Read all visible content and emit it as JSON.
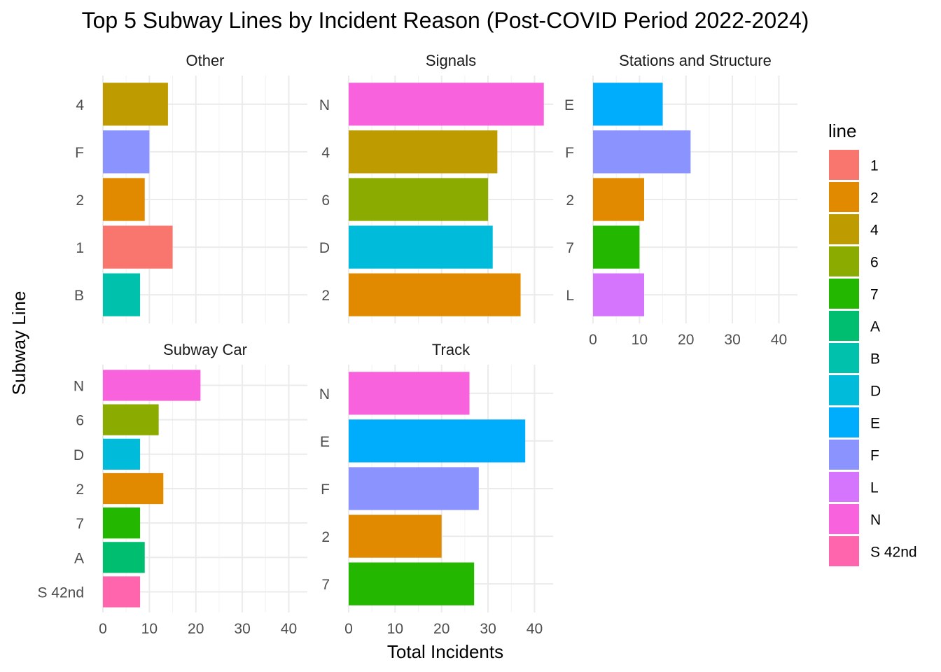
{
  "chart_data": {
    "type": "bar",
    "orientation": "horizontal",
    "title": "Top 5 Subway Lines by Incident Reason (Post-COVID Period 2022-2024)",
    "xlabel": "Total Incidents",
    "ylabel": "Subway Line",
    "xlim": [
      0,
      44
    ],
    "x_ticks": [
      0,
      10,
      20,
      30,
      40
    ],
    "grid": true,
    "legend": {
      "title": "line",
      "placement": "right",
      "entries": [
        {
          "label": "1",
          "color": "#F8766D"
        },
        {
          "label": "2",
          "color": "#E18A00"
        },
        {
          "label": "4",
          "color": "#BE9C00"
        },
        {
          "label": "6",
          "color": "#8CAB00"
        },
        {
          "label": "7",
          "color": "#24B700"
        },
        {
          "label": "A",
          "color": "#00BE70"
        },
        {
          "label": "B",
          "color": "#00C1AB"
        },
        {
          "label": "D",
          "color": "#00BBDA"
        },
        {
          "label": "E",
          "color": "#00ACFC"
        },
        {
          "label": "F",
          "color": "#8B93FF"
        },
        {
          "label": "L",
          "color": "#D575FE"
        },
        {
          "label": "N",
          "color": "#F962DD"
        },
        {
          "label": "S 42nd",
          "color": "#FF65AC"
        }
      ]
    },
    "facets": [
      {
        "name": "Other",
        "categories": [
          "4",
          "F",
          "2",
          "1",
          "B"
        ],
        "values": [
          14,
          10,
          9,
          15,
          8
        ]
      },
      {
        "name": "Signals",
        "categories": [
          "N",
          "4",
          "6",
          "D",
          "2"
        ],
        "values": [
          42,
          32,
          30,
          31,
          37
        ]
      },
      {
        "name": "Stations and Structure",
        "categories": [
          "E",
          "F",
          "2",
          "7",
          "L"
        ],
        "values": [
          15,
          21,
          11,
          10,
          11
        ]
      },
      {
        "name": "Subway Car",
        "categories": [
          "N",
          "6",
          "D",
          "2",
          "7",
          "A",
          "S 42nd"
        ],
        "values": [
          21,
          12,
          8,
          13,
          8,
          9,
          8
        ]
      },
      {
        "name": "Track",
        "categories": [
          "N",
          "E",
          "F",
          "2",
          "7"
        ],
        "values": [
          26,
          38,
          28,
          20,
          27
        ]
      }
    ]
  }
}
